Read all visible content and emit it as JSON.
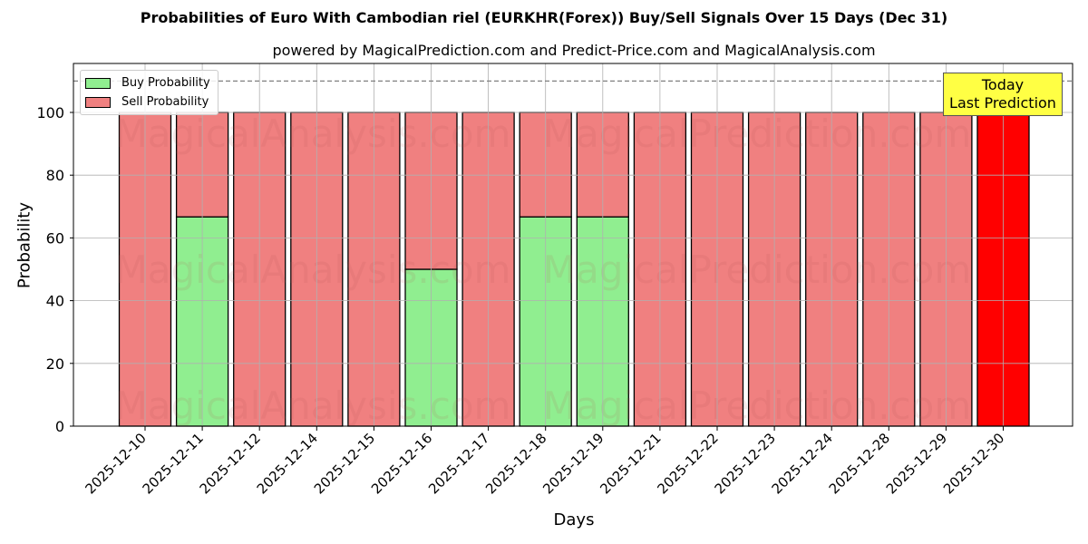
{
  "chart_data": {
    "type": "bar",
    "stacked": true,
    "title": "Probabilities of Euro With Cambodian riel (EURKHR(Forex)) Buy/Sell Signals Over 15 Days (Dec 31)",
    "subtitle": "powered by MagicalPrediction.com and Predict-Price.com and MagicalAnalysis.com",
    "xlabel": "Days",
    "ylabel": "Probability",
    "ylim": [
      0,
      115
    ],
    "yticks": [
      0,
      20,
      40,
      60,
      80,
      100
    ],
    "grid": true,
    "legend_position": "upper left",
    "reference_line": {
      "y": 110,
      "style": "dashed",
      "color": "#808080"
    },
    "categories": [
      "2025-12-10",
      "2025-12-11",
      "2025-12-12",
      "2025-12-14",
      "2025-12-15",
      "2025-12-16",
      "2025-12-17",
      "2025-12-18",
      "2025-12-19",
      "2025-12-21",
      "2025-12-22",
      "2025-12-23",
      "2025-12-24",
      "2025-12-28",
      "2025-12-29",
      "2025-12-30"
    ],
    "series": [
      {
        "name": "Buy Probability",
        "color": "#90ee90",
        "values": [
          0,
          66.7,
          0,
          0,
          0,
          50,
          0,
          66.7,
          66.7,
          0,
          0,
          0,
          0,
          0,
          0,
          0
        ]
      },
      {
        "name": "Sell Probability",
        "color": "#f08080",
        "values": [
          100,
          33.3,
          100,
          100,
          100,
          50,
          100,
          33.3,
          33.3,
          100,
          100,
          100,
          100,
          100,
          100,
          100
        ]
      }
    ],
    "highlight": {
      "index": 15,
      "color": "#ff0000",
      "annotation": "Today\nLast Prediction"
    },
    "watermarks": [
      "MagicalAnalysis.com",
      "MagicalPrediction.com"
    ]
  },
  "legend": {
    "buy_label": "Buy Probability",
    "sell_label": "Sell Probability"
  },
  "annotation": {
    "line1": "Today",
    "line2": "Last Prediction"
  }
}
